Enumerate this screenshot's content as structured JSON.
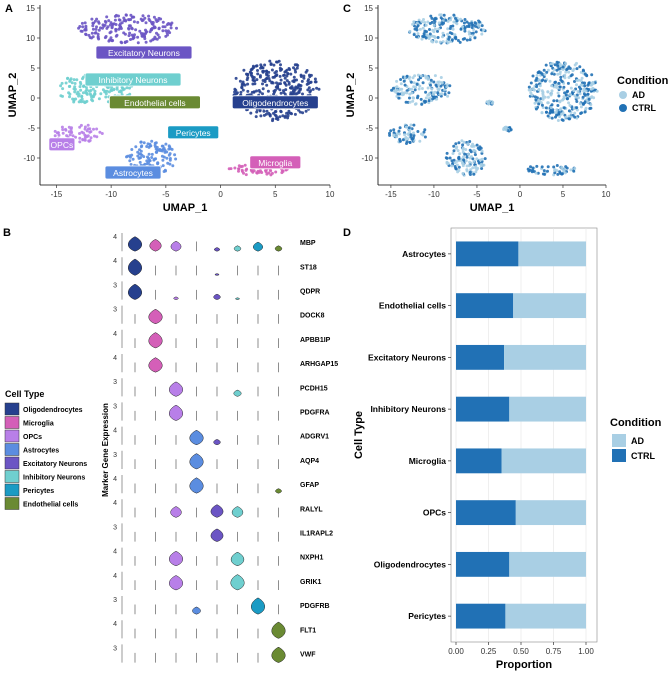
{
  "colors": {
    "Oligodendrocytes": "#26408e",
    "Microglia": "#d45fb8",
    "OPCs": "#b87fe8",
    "Astrocytes": "#5b8de0",
    "Excitatory Neurons": "#6b55c4",
    "Inhibitory Neurons": "#6fcfcf",
    "Pericytes": "#1b9bc4",
    "Endothelial cells": "#6a8a33",
    "AD": "#a9cfe4",
    "CTRL": "#2171b5"
  },
  "chart_data": [
    {
      "panel": "A",
      "type": "scatter",
      "xlabel": "UMAP_1",
      "ylabel": "UMAP_2",
      "xlim": [
        -16.5,
        10
      ],
      "ylim": [
        -14.5,
        15.5
      ],
      "xticks": [
        -15,
        -10,
        -5,
        0,
        5,
        10
      ],
      "yticks": [
        -10,
        -5,
        0,
        5,
        10,
        15
      ],
      "clusters": [
        {
          "name": "Excitatory Neurons",
          "label": "Excitatory Neurons",
          "center": [
            -8.5,
            11.5
          ],
          "rx": 4.5,
          "ry": 2.4,
          "label_at": [
            -7.0,
            7.5
          ]
        },
        {
          "name": "Inhibitory Neurons",
          "label": "Inhibitory Neurons",
          "center": [
            -11.5,
            1.5
          ],
          "rx": 3.5,
          "ry": 2.6,
          "label_at": [
            -8.0,
            3.0
          ]
        },
        {
          "name": "Endothelial cells",
          "label": "Endothelial cells",
          "center": [
            -3.5,
            -0.8
          ],
          "rx": 0.4,
          "ry": 0.3,
          "label_at": [
            -6.0,
            -0.8
          ]
        },
        {
          "name": "Oligodendrocytes",
          "label": "Oligodendrocytes",
          "center": [
            5.0,
            1.2
          ],
          "rx": 4.0,
          "ry": 5.0,
          "label_at": [
            5.0,
            -0.8
          ]
        },
        {
          "name": "Pericytes",
          "label": "Pericytes",
          "center": [
            -1.5,
            -5.2
          ],
          "rx": 0.5,
          "ry": 0.4,
          "label_at": [
            -2.5,
            -5.8
          ]
        },
        {
          "name": "OPCs",
          "label": "OPCs",
          "center": [
            -13.0,
            -6.0
          ],
          "rx": 2.2,
          "ry": 1.6,
          "label_at": [
            -14.5,
            -7.8
          ]
        },
        {
          "name": "Astrocytes",
          "label": "Astrocytes",
          "center": [
            -6.3,
            -10.0
          ],
          "rx": 2.3,
          "ry": 3.0,
          "label_at": [
            -8.0,
            -12.5
          ]
        },
        {
          "name": "Microglia",
          "label": "Microglia",
          "center": [
            3.5,
            -12.0
          ],
          "rx": 3.0,
          "ry": 0.9,
          "label_at": [
            5.0,
            -10.8
          ]
        }
      ]
    },
    {
      "panel": "C",
      "type": "scatter",
      "xlabel": "UMAP_1",
      "ylabel": "UMAP_2",
      "xlim": [
        -16.5,
        10
      ],
      "ylim": [
        -14.5,
        15.5
      ],
      "xticks": [
        -15,
        -10,
        -5,
        0,
        5,
        10
      ],
      "yticks": [
        -10,
        -5,
        0,
        5,
        10,
        15
      ],
      "legend_title": "Condition",
      "legend": [
        "AD",
        "CTRL"
      ]
    },
    {
      "panel": "B",
      "type": "violin",
      "ylabel": "Marker Gene Expression",
      "genes": [
        "MBP",
        "ST18",
        "QDPR",
        "DOCK8",
        "APBB1IP",
        "ARHGAP15",
        "PCDH15",
        "PDGFRA",
        "ADGRV1",
        "AQP4",
        "GFAP",
        "RALYL",
        "IL1RAPL2",
        "NXPH1",
        "GRIK1",
        "PDGFRB",
        "FLT1",
        "VWF"
      ],
      "ymax": [
        4,
        4,
        3,
        3,
        4,
        4,
        3,
        3,
        4,
        3,
        4,
        4,
        3,
        4,
        4,
        3,
        4,
        3
      ],
      "cell_order": [
        "Oligodendrocytes",
        "Microglia",
        "OPCs",
        "Astrocytes",
        "Excitatory Neurons",
        "Inhibitory Neurons",
        "Pericytes",
        "Endothelial cells"
      ],
      "column_colors": [
        "Oligodendrocytes",
        "Microglia",
        "OPCs",
        "Astrocytes",
        "Excitatory Neurons",
        "Inhibitory Neurons",
        "Pericytes",
        "Endothelial cells"
      ],
      "expression": [
        [
          0.8,
          0.65,
          0.55,
          0.05,
          0.2,
          0.3,
          0.5,
          0.3
        ],
        [
          0.9,
          0.05,
          0.05,
          0.05,
          0.1,
          0.05,
          0.05,
          0.05
        ],
        [
          0.85,
          0.05,
          0.15,
          0.05,
          0.3,
          0.1,
          0.05,
          0.05
        ],
        [
          0.05,
          0.8,
          0.05,
          0.05,
          0.05,
          0.05,
          0.05,
          0.05
        ],
        [
          0.05,
          0.85,
          0.05,
          0.05,
          0.05,
          0.05,
          0.05,
          0.05
        ],
        [
          0.05,
          0.8,
          0.05,
          0.05,
          0.05,
          0.05,
          0.05,
          0.05
        ],
        [
          0.05,
          0.05,
          0.8,
          0.05,
          0.05,
          0.35,
          0.05,
          0.05
        ],
        [
          0.05,
          0.05,
          0.85,
          0.05,
          0.05,
          0.05,
          0.05,
          0.05
        ],
        [
          0.05,
          0.05,
          0.05,
          0.8,
          0.3,
          0.05,
          0.05,
          0.05
        ],
        [
          0.05,
          0.05,
          0.05,
          0.85,
          0.05,
          0.05,
          0.05,
          0.05
        ],
        [
          0.05,
          0.05,
          0.05,
          0.85,
          0.05,
          0.05,
          0.05,
          0.25
        ],
        [
          0.05,
          0.05,
          0.6,
          0.05,
          0.7,
          0.6,
          0.05,
          0.05
        ],
        [
          0.05,
          0.05,
          0.05,
          0.05,
          0.7,
          0.05,
          0.05,
          0.05
        ],
        [
          0.05,
          0.05,
          0.8,
          0.05,
          0.05,
          0.75,
          0.05,
          0.05
        ],
        [
          0.05,
          0.05,
          0.8,
          0.05,
          0.05,
          0.85,
          0.05,
          0.05
        ],
        [
          0.05,
          0.05,
          0.05,
          0.4,
          0.05,
          0.05,
          0.9,
          0.05
        ],
        [
          0.05,
          0.05,
          0.05,
          0.05,
          0.05,
          0.05,
          0.05,
          0.9
        ],
        [
          0.05,
          0.05,
          0.05,
          0.05,
          0.05,
          0.05,
          0.05,
          0.85
        ]
      ],
      "legend_title": "Cell Type",
      "legend": [
        "Oligodendrocytes",
        "Microglia",
        "OPCs",
        "Astrocytes",
        "Excitatory Neurons",
        "Inhibitory Neurons",
        "Pericytes",
        "Endothelial cells"
      ]
    },
    {
      "panel": "D",
      "type": "bar",
      "orientation": "horizontal",
      "stacked": true,
      "categories": [
        "Astrocytes",
        "Endothelial cells",
        "Excitatory Neurons",
        "Inhibitory Neurons",
        "Microglia",
        "OPCs",
        "Oligodendrocytes",
        "Pericytes"
      ],
      "series": [
        {
          "name": "CTRL",
          "values": [
            0.48,
            0.44,
            0.37,
            0.41,
            0.35,
            0.46,
            0.41,
            0.38
          ]
        },
        {
          "name": "AD",
          "values": [
            0.52,
            0.56,
            0.63,
            0.59,
            0.65,
            0.54,
            0.59,
            0.62
          ]
        }
      ],
      "xlabel": "Proportion",
      "ylabel": "Cell Type",
      "xlim": [
        0,
        1
      ],
      "xticks": [
        "0.00",
        "0.25",
        "0.50",
        "0.75",
        "1.00"
      ],
      "legend_title": "Condition",
      "legend": [
        "AD",
        "CTRL"
      ]
    }
  ]
}
